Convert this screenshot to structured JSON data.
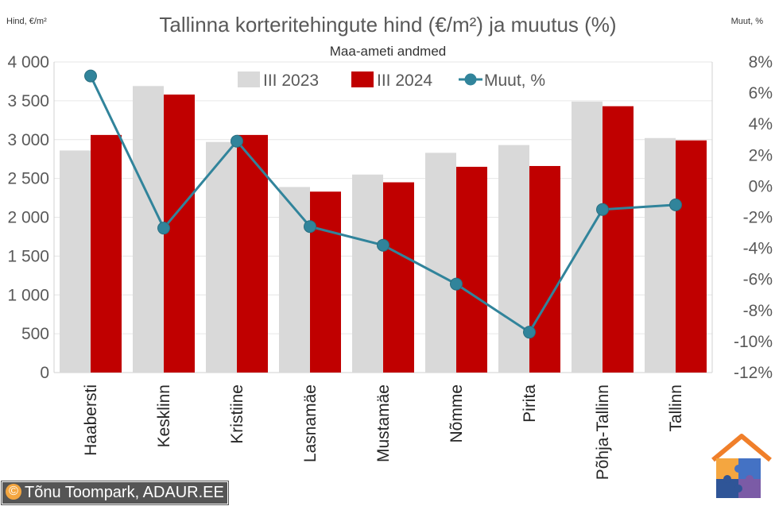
{
  "chart_data": {
    "type": "bar",
    "title": "Tallinna korteritehingute hind (€/m²) ja muutus (%)",
    "subtitle": "Maa-ameti andmed",
    "ylabel": "Hind, €/m²",
    "y2label": "Muut, %",
    "categories": [
      "Haabersti",
      "Kesklinn",
      "Kristiine",
      "Lasnamäe",
      "Mustamäe",
      "Nõmme",
      "Pirita",
      "Põhja-Tallinn",
      "Tallinn"
    ],
    "series": [
      {
        "name": "III 2023",
        "kind": "bar",
        "axis": "left",
        "color": "#d9d9d9",
        "values": [
          2860,
          3690,
          2970,
          2390,
          2550,
          2830,
          2930,
          3490,
          3020
        ]
      },
      {
        "name": "III 2024",
        "kind": "bar",
        "axis": "left",
        "color": "#c00000",
        "values": [
          3060,
          3580,
          3060,
          2330,
          2450,
          2650,
          2660,
          3430,
          2990
        ]
      },
      {
        "name": "Muut, %",
        "kind": "line",
        "axis": "right",
        "color": "#31849b",
        "values": [
          7.1,
          -2.7,
          2.9,
          -2.6,
          -3.8,
          -6.3,
          -9.4,
          -1.5,
          -1.2
        ]
      }
    ],
    "ylim": [
      0,
      4000
    ],
    "y_ticks": [
      0,
      500,
      1000,
      1500,
      2000,
      2500,
      3000,
      3500,
      4000
    ],
    "y_tick_labels": [
      "0",
      "500",
      "1 000",
      "1 500",
      "2 000",
      "2 500",
      "3 000",
      "3 500",
      "4 000"
    ],
    "y2lim": [
      -12,
      8
    ],
    "y2_ticks": [
      -12,
      -10,
      -8,
      -6,
      -4,
      -2,
      0,
      2,
      4,
      6,
      8
    ],
    "y2_tick_labels": [
      "-12%",
      "-10%",
      "-8%",
      "-6%",
      "-4%",
      "-2%",
      "0%",
      "2%",
      "4%",
      "6%",
      "8%"
    ],
    "grid": true,
    "legend_position": "top"
  },
  "credit": {
    "symbol": "©",
    "text": "Tõnu Toompark, ADAUR.EE"
  },
  "logo": {
    "name": "house-puzzle-logo"
  }
}
